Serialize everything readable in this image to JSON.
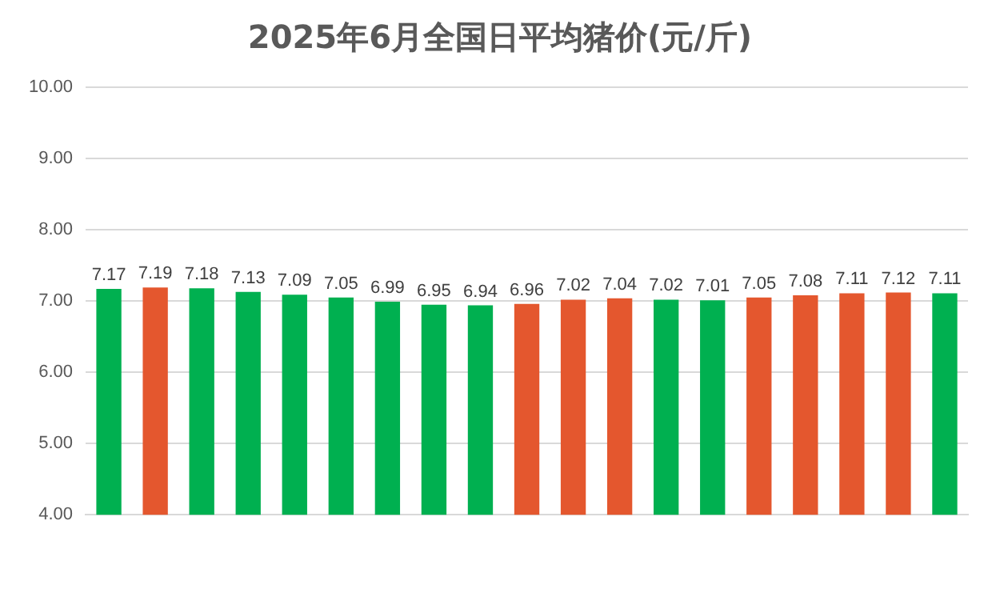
{
  "chart_data": {
    "type": "bar",
    "title": "2025年6月全国日平均猪价(元/斤)",
    "categories": [
      null,
      null,
      null,
      null,
      null,
      null,
      null,
      null,
      null,
      null,
      null,
      null,
      null,
      null,
      null,
      null,
      null,
      null,
      null
    ],
    "values": [
      7.17,
      7.19,
      7.18,
      7.13,
      7.09,
      7.05,
      6.99,
      6.95,
      6.94,
      6.96,
      7.02,
      7.04,
      7.02,
      7.01,
      7.05,
      7.08,
      7.11,
      7.12,
      7.11
    ],
    "colors": [
      "#00b050",
      "#e4572e",
      "#00b050",
      "#00b050",
      "#00b050",
      "#00b050",
      "#00b050",
      "#00b050",
      "#00b050",
      "#e4572e",
      "#e4572e",
      "#e4572e",
      "#00b050",
      "#00b050",
      "#e4572e",
      "#e4572e",
      "#e4572e",
      "#e4572e",
      "#00b050"
    ],
    "ylim": [
      4,
      10
    ],
    "yticks": [
      {
        "value": 4,
        "label": "4.00"
      },
      {
        "value": 5,
        "label": "5.00"
      },
      {
        "value": 6,
        "label": "6.00"
      },
      {
        "value": 7,
        "label": "7.00"
      },
      {
        "value": 8,
        "label": "8.00"
      },
      {
        "value": 9,
        "label": "9.00"
      },
      {
        "value": 10,
        "label": "10.00"
      }
    ],
    "grid": "y",
    "data_labels": true,
    "legend": false
  }
}
